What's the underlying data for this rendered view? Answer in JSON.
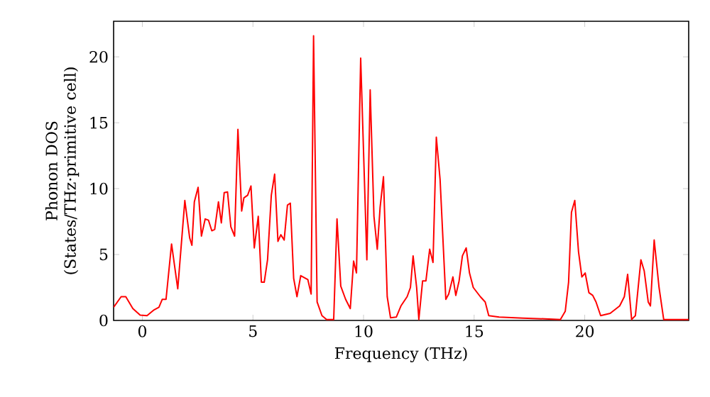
{
  "chart_data": {
    "type": "line",
    "xlabel": "Frequency (THz)",
    "ylabel": "Phonon DOS (States/THz·primitive cell)",
    "color": "#ff0000",
    "xlim": [
      -1.3,
      24.7
    ],
    "ylim": [
      0,
      22.7
    ],
    "xticks": [
      0,
      5,
      10,
      15,
      20
    ],
    "yticks": [
      0,
      5,
      10,
      15,
      20
    ],
    "x": [
      -1.3,
      -0.96,
      -0.75,
      -0.43,
      -0.1,
      0.21,
      0.53,
      0.75,
      0.9,
      1.07,
      1.32,
      1.6,
      1.92,
      2.14,
      2.24,
      2.35,
      2.52,
      2.67,
      2.84,
      2.99,
      3.14,
      3.27,
      3.44,
      3.57,
      3.7,
      3.85,
      4.0,
      4.17,
      4.32,
      4.49,
      4.59,
      4.76,
      4.91,
      5.06,
      5.24,
      5.38,
      5.51,
      5.66,
      5.83,
      5.98,
      6.13,
      6.26,
      6.41,
      6.56,
      6.69,
      6.84,
      6.99,
      7.16,
      7.48,
      7.63,
      7.74,
      7.9,
      8.12,
      8.33,
      8.65,
      8.8,
      8.97,
      9.19,
      9.4,
      9.55,
      9.68,
      9.87,
      10.15,
      10.3,
      10.47,
      10.62,
      10.75,
      10.9,
      11.07,
      11.22,
      11.48,
      11.69,
      11.97,
      12.12,
      12.24,
      12.4,
      12.5,
      12.67,
      12.82,
      12.99,
      13.14,
      13.29,
      13.46,
      13.72,
      13.85,
      14.04,
      14.17,
      14.32,
      14.47,
      14.64,
      14.79,
      14.96,
      15.28,
      15.5,
      15.66,
      16.13,
      17.2,
      18.9,
      19.12,
      19.27,
      19.4,
      19.55,
      19.72,
      19.87,
      20.02,
      20.19,
      20.36,
      20.51,
      20.72,
      21.15,
      21.58,
      21.79,
      21.94,
      22.12,
      22.29,
      22.54,
      22.69,
      22.87,
      22.97,
      23.14,
      23.36,
      23.57,
      24.7
    ],
    "values": [
      1.0,
      1.8,
      1.8,
      0.9,
      0.4,
      0.36,
      0.8,
      1.0,
      1.6,
      1.6,
      5.8,
      2.4,
      9.1,
      6.25,
      5.7,
      9.0,
      10.1,
      6.4,
      7.7,
      7.6,
      6.8,
      6.9,
      9.0,
      7.4,
      9.7,
      9.75,
      7.1,
      6.4,
      14.5,
      8.3,
      9.3,
      9.5,
      10.2,
      5.5,
      7.9,
      2.9,
      2.9,
      4.6,
      9.5,
      11.1,
      6.0,
      6.5,
      6.1,
      8.75,
      8.9,
      3.2,
      1.8,
      3.4,
      3.1,
      2.0,
      21.6,
      1.4,
      0.36,
      0.07,
      0.07,
      7.7,
      2.6,
      1.6,
      0.9,
      4.5,
      3.6,
      19.9,
      4.6,
      17.5,
      7.9,
      5.4,
      8.6,
      10.9,
      1.8,
      0.2,
      0.25,
      1.1,
      1.8,
      2.5,
      4.9,
      2.5,
      0.07,
      3.0,
      3.0,
      5.4,
      4.4,
      13.9,
      10.7,
      1.6,
      2.0,
      3.3,
      1.9,
      3.0,
      4.9,
      5.5,
      3.6,
      2.5,
      1.8,
      1.4,
      0.36,
      0.25,
      0.18,
      0.07,
      0.7,
      2.9,
      8.2,
      9.1,
      5.2,
      3.3,
      3.6,
      2.1,
      1.9,
      1.4,
      0.36,
      0.54,
      1.1,
      1.8,
      3.5,
      0.07,
      0.36,
      4.6,
      3.75,
      1.4,
      1.1,
      6.1,
      2.5,
      0.07,
      0.07
    ]
  }
}
